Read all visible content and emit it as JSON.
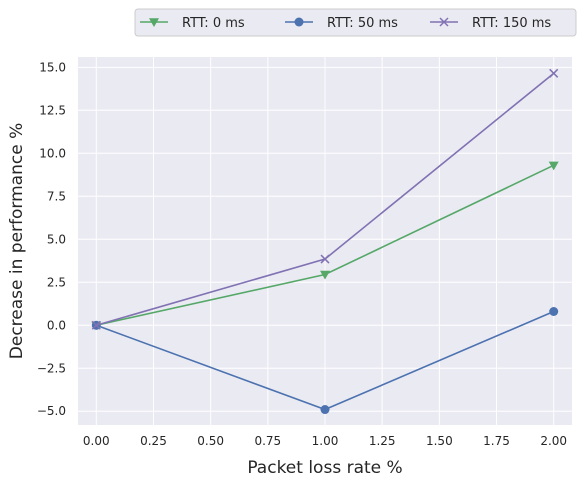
{
  "chart_data": {
    "type": "line",
    "xlabel": "Packet loss rate %",
    "ylabel": "Decrease in performance %",
    "x": [
      0.0,
      1.0,
      2.0
    ],
    "xlim": [
      -0.08,
      2.08
    ],
    "ylim": [
      -5.8,
      15.6
    ],
    "x_ticks": [
      "0.00",
      "0.25",
      "0.50",
      "0.75",
      "1.00",
      "1.25",
      "1.50",
      "1.75",
      "2.00"
    ],
    "y_ticks": [
      "−5.0",
      "−2.5",
      "0.0",
      "2.5",
      "5.0",
      "7.5",
      "10.0",
      "12.5",
      "15.0"
    ],
    "grid": true,
    "legend_position": "top-right-outside",
    "series": [
      {
        "name": "RTT: 0 ms",
        "marker": "triangle-down",
        "color": "#55a868",
        "values": [
          0.0,
          2.95,
          9.3
        ]
      },
      {
        "name": "RTT: 50 ms",
        "marker": "circle",
        "color": "#4c72b0",
        "values": [
          0.0,
          -4.9,
          0.8
        ]
      },
      {
        "name": "RTT: 150 ms",
        "marker": "x",
        "color": "#8172b3",
        "values": [
          0.0,
          3.85,
          14.65
        ]
      }
    ]
  }
}
